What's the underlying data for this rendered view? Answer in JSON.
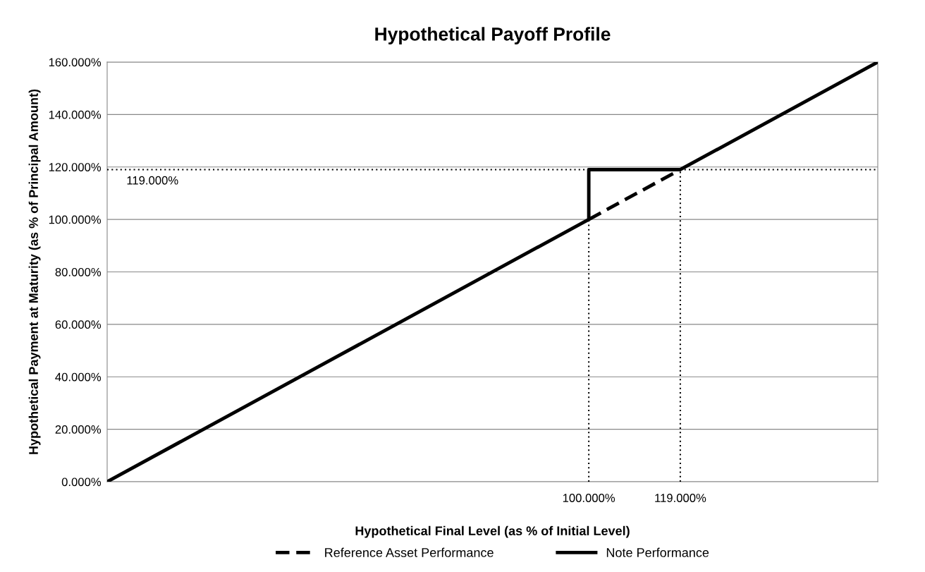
{
  "chart_data": {
    "type": "line",
    "title": "Hypothetical Payoff Profile",
    "xlabel": "Hypothetical Final Level (as % of Initial Level)",
    "ylabel": "Hypothetical Payment at Maturity (as % of Principal Amount)",
    "series": [
      {
        "name": "Reference Asset Performance",
        "color": "#000000",
        "line_style": "dashed",
        "x": [
          100,
          119
        ],
        "values": [
          100,
          119
        ]
      },
      {
        "name": "Note Performance",
        "color": "#000000",
        "line_style": "solid",
        "x": [
          0,
          100,
          100,
          119,
          160
        ],
        "values": [
          0,
          100,
          119,
          119,
          160
        ]
      }
    ],
    "xlim": [
      0,
      160
    ],
    "xticks": [
      {
        "value": 100,
        "label": "100.000%"
      },
      {
        "value": 119,
        "label": "119.000%"
      }
    ],
    "ylim": [
      0,
      160
    ],
    "yticks": [
      {
        "value": 0,
        "label": "0.000%"
      },
      {
        "value": 20,
        "label": "20.000%"
      },
      {
        "value": 40,
        "label": "40.000%"
      },
      {
        "value": 60,
        "label": "60.000%"
      },
      {
        "value": 80,
        "label": "80.000%"
      },
      {
        "value": 100,
        "label": "100.000%"
      },
      {
        "value": 120,
        "label": "120.000%"
      },
      {
        "value": 140,
        "label": "140.000%"
      },
      {
        "value": 160,
        "label": "160.000%"
      }
    ],
    "ref_lines": [
      {
        "axis": "y",
        "value": 119,
        "label": "119.000%",
        "color": "#000000",
        "line_style": "dotted"
      },
      {
        "axis": "x",
        "value": 100,
        "label": null,
        "color": "#000000",
        "line_style": "dotted"
      },
      {
        "axis": "x",
        "value": 119,
        "label": null,
        "color": "#000000",
        "line_style": "dotted"
      }
    ],
    "grid": "y",
    "legend": "bottom",
    "marker": "none"
  }
}
